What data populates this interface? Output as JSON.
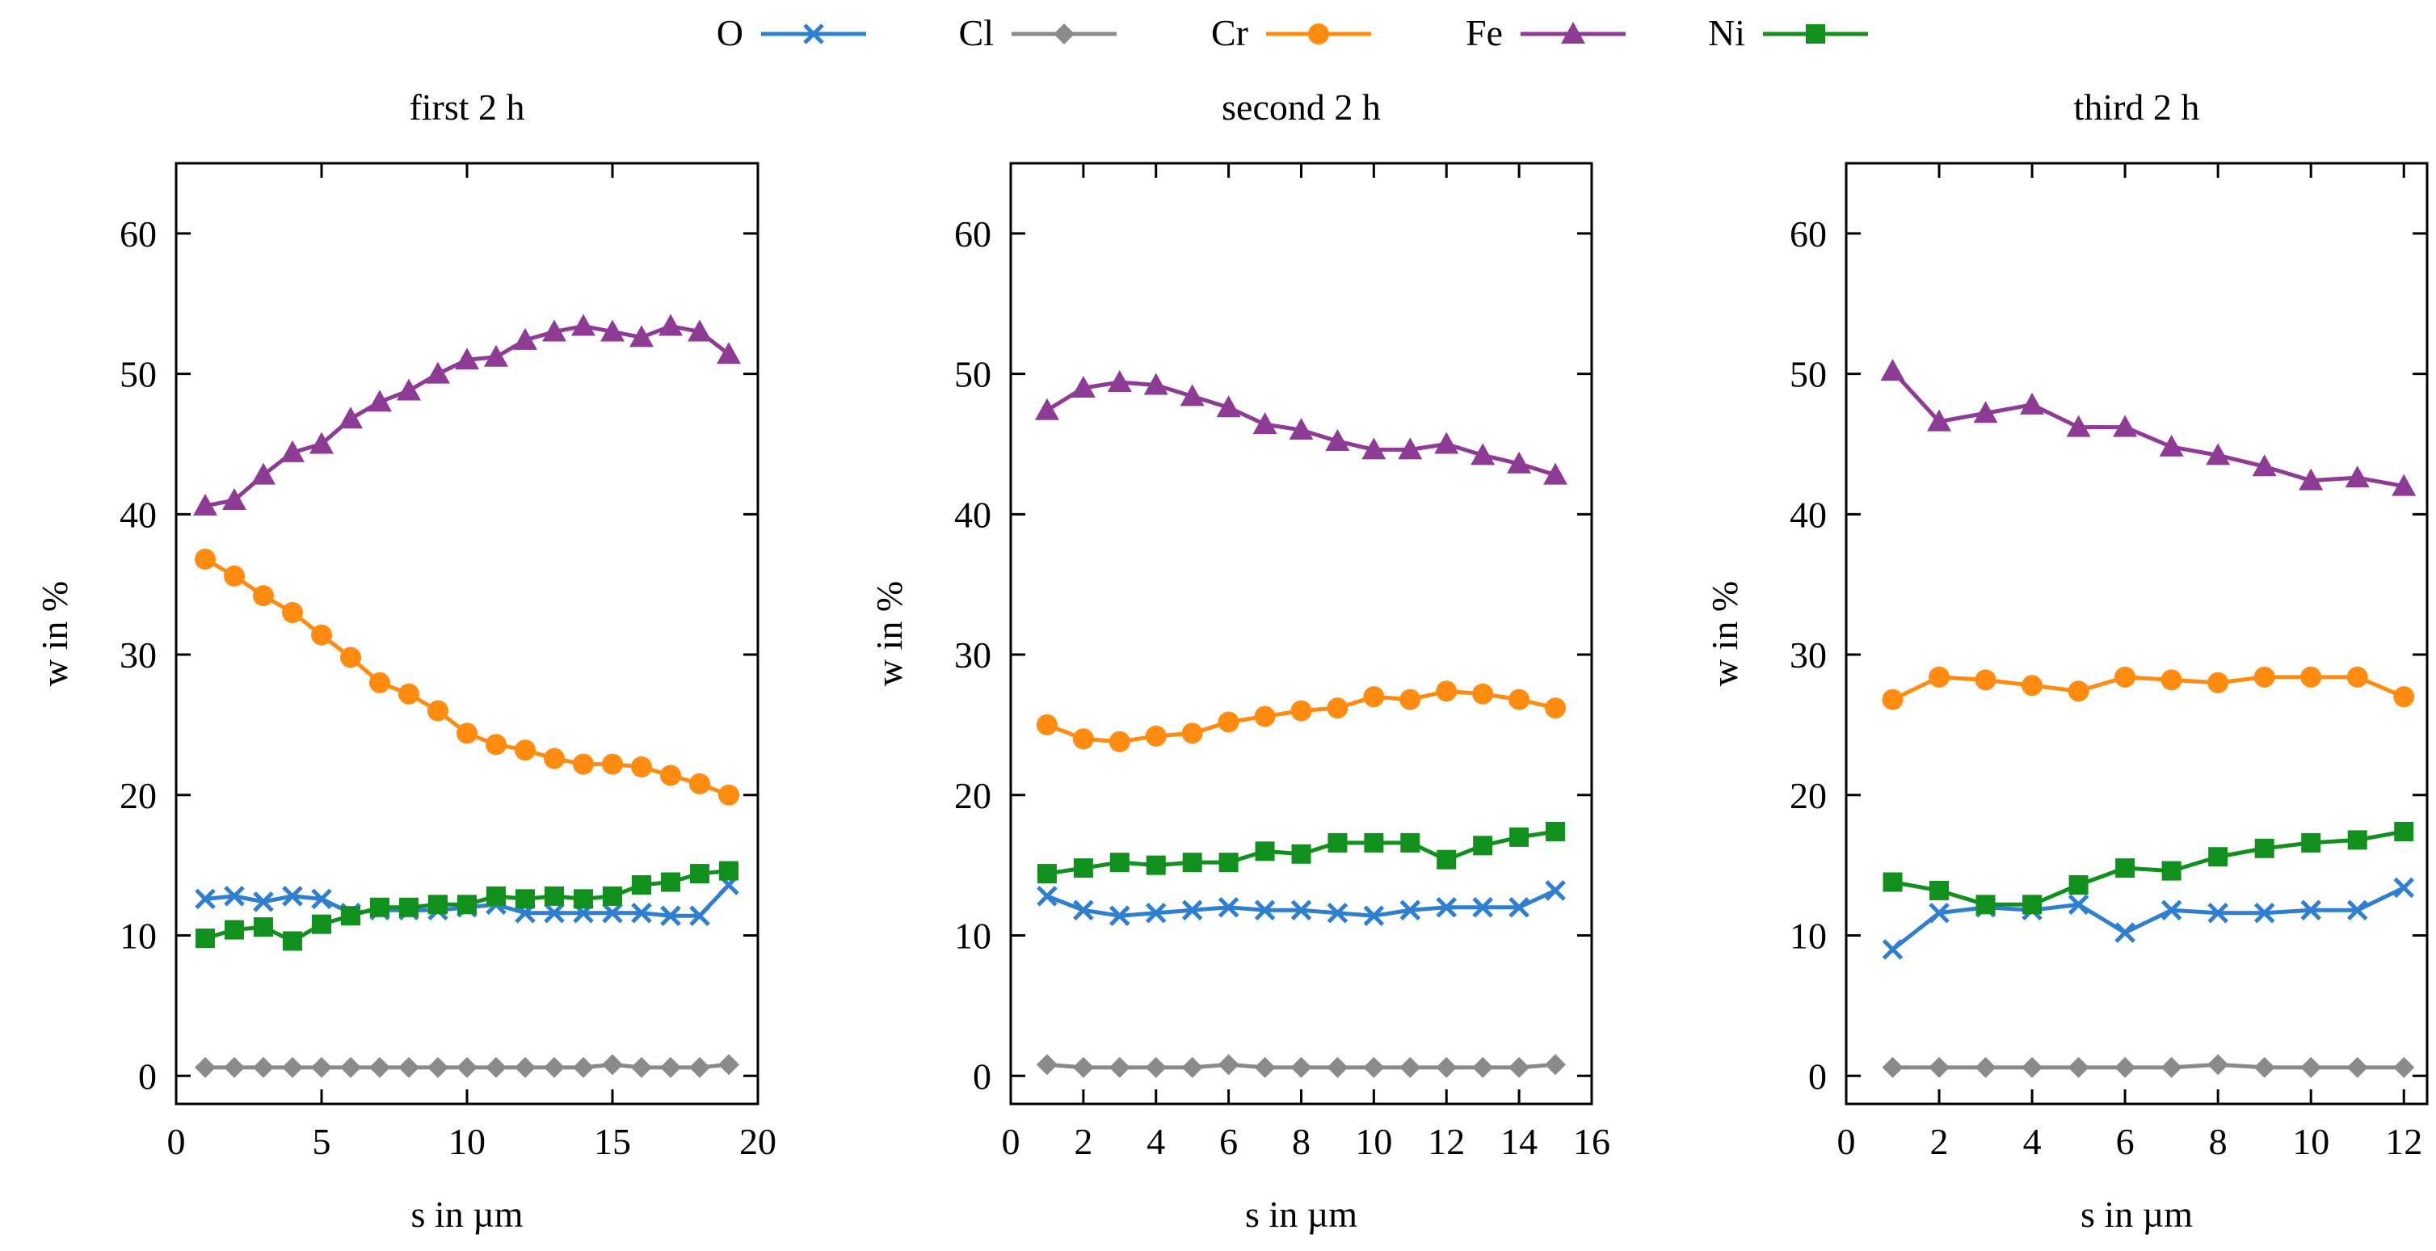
{
  "legend": [
    {
      "name": "O",
      "color": "#2f7fd0",
      "marker": "x"
    },
    {
      "name": "Cl",
      "color": "#8a8a8a",
      "marker": "diamond"
    },
    {
      "name": "Cr",
      "color": "#ff8c10",
      "marker": "circle"
    },
    {
      "name": "Fe",
      "color": "#8e3b96",
      "marker": "triangle"
    },
    {
      "name": "Ni",
      "color": "#12901e",
      "marker": "square"
    }
  ],
  "chart_data": [
    {
      "type": "line",
      "title": "first 2 h",
      "xlabel": "s in µm",
      "ylabel": "w in %",
      "xlim": [
        0,
        20
      ],
      "ylim": [
        -2,
        65
      ],
      "xticks": [
        0,
        5,
        10,
        15,
        20
      ],
      "yticks": [
        0,
        10,
        20,
        30,
        40,
        50,
        60
      ],
      "x": [
        1,
        2,
        3,
        4,
        5,
        6,
        7,
        8,
        9,
        10,
        11,
        12,
        13,
        14,
        15,
        16,
        17,
        18,
        19
      ],
      "series": [
        {
          "name": "O",
          "values": [
            12.6,
            12.8,
            12.4,
            12.8,
            12.6,
            11.6,
            11.8,
            11.8,
            11.8,
            12.0,
            12.2,
            11.6,
            11.6,
            11.6,
            11.6,
            11.6,
            11.4,
            11.4,
            13.6
          ]
        },
        {
          "name": "Cl",
          "values": [
            0.6,
            0.6,
            0.6,
            0.6,
            0.6,
            0.6,
            0.6,
            0.6,
            0.6,
            0.6,
            0.6,
            0.6,
            0.6,
            0.6,
            0.8,
            0.6,
            0.6,
            0.6,
            0.8
          ]
        },
        {
          "name": "Cr",
          "values": [
            36.8,
            35.6,
            34.2,
            33.0,
            31.4,
            29.8,
            28.0,
            27.2,
            26.0,
            24.4,
            23.6,
            23.2,
            22.6,
            22.2,
            22.2,
            22.0,
            21.4,
            20.8,
            20.0
          ]
        },
        {
          "name": "Fe",
          "values": [
            40.6,
            41.0,
            42.8,
            44.4,
            45.0,
            46.8,
            48.0,
            48.8,
            50.0,
            51.0,
            51.2,
            52.4,
            53.0,
            53.4,
            53.0,
            52.6,
            53.4,
            53.0,
            51.4
          ]
        },
        {
          "name": "Ni",
          "values": [
            9.8,
            10.4,
            10.6,
            9.6,
            10.8,
            11.4,
            12.0,
            12.0,
            12.2,
            12.2,
            12.8,
            12.6,
            12.8,
            12.6,
            12.8,
            13.6,
            13.8,
            14.4,
            14.6
          ]
        }
      ]
    },
    {
      "type": "line",
      "title": "second 2 h",
      "xlabel": "s in µm",
      "ylabel": "w in %",
      "xlim": [
        0,
        16
      ],
      "ylim": [
        -2,
        65
      ],
      "xticks": [
        0,
        2,
        4,
        6,
        8,
        10,
        12,
        14,
        16
      ],
      "yticks": [
        0,
        10,
        20,
        30,
        40,
        50,
        60
      ],
      "x": [
        1,
        2,
        3,
        4,
        5,
        6,
        7,
        8,
        9,
        10,
        11,
        12,
        13,
        14,
        15
      ],
      "series": [
        {
          "name": "O",
          "values": [
            12.8,
            11.8,
            11.4,
            11.6,
            11.8,
            12.0,
            11.8,
            11.8,
            11.6,
            11.4,
            11.8,
            12.0,
            12.0,
            12.0,
            13.2
          ]
        },
        {
          "name": "Cl",
          "values": [
            0.8,
            0.6,
            0.6,
            0.6,
            0.6,
            0.8,
            0.6,
            0.6,
            0.6,
            0.6,
            0.6,
            0.6,
            0.6,
            0.6,
            0.8
          ]
        },
        {
          "name": "Cr",
          "values": [
            25.0,
            24.0,
            23.8,
            24.2,
            24.4,
            25.2,
            25.6,
            26.0,
            26.2,
            27.0,
            26.8,
            27.4,
            27.2,
            26.8,
            26.2
          ]
        },
        {
          "name": "Fe",
          "values": [
            47.4,
            49.0,
            49.4,
            49.2,
            48.4,
            47.6,
            46.4,
            46.0,
            45.2,
            44.6,
            44.6,
            45.0,
            44.2,
            43.6,
            42.8
          ]
        },
        {
          "name": "Ni",
          "values": [
            14.4,
            14.8,
            15.2,
            15.0,
            15.2,
            15.2,
            16.0,
            15.8,
            16.6,
            16.6,
            16.6,
            15.4,
            16.4,
            17.0,
            17.4
          ]
        }
      ]
    },
    {
      "type": "line",
      "title": "third 2 h",
      "xlabel": "s in µm",
      "ylabel": "w in %",
      "xlim": [
        0,
        12.5
      ],
      "ylim": [
        -2,
        65
      ],
      "xticks": [
        0,
        2,
        4,
        6,
        8,
        10,
        12
      ],
      "yticks": [
        0,
        10,
        20,
        30,
        40,
        50,
        60
      ],
      "x": [
        1,
        2,
        3,
        4,
        5,
        6,
        7,
        8,
        9,
        10,
        11,
        12
      ],
      "series": [
        {
          "name": "O",
          "values": [
            9.0,
            11.6,
            12.0,
            11.8,
            12.2,
            10.2,
            11.8,
            11.6,
            11.6,
            11.8,
            11.8,
            13.4
          ]
        },
        {
          "name": "Cl",
          "values": [
            0.6,
            0.6,
            0.6,
            0.6,
            0.6,
            0.6,
            0.6,
            0.8,
            0.6,
            0.6,
            0.6,
            0.6
          ]
        },
        {
          "name": "Cr",
          "values": [
            26.8,
            28.4,
            28.2,
            27.8,
            27.4,
            28.4,
            28.2,
            28.0,
            28.4,
            28.4,
            28.4,
            27.0
          ]
        },
        {
          "name": "Fe",
          "values": [
            50.2,
            46.6,
            47.2,
            47.8,
            46.2,
            46.2,
            44.8,
            44.2,
            43.4,
            42.4,
            42.6,
            42.0
          ]
        },
        {
          "name": "Ni",
          "values": [
            13.8,
            13.2,
            12.2,
            12.2,
            13.6,
            14.8,
            14.6,
            15.6,
            16.2,
            16.6,
            16.8,
            17.4
          ]
        }
      ]
    }
  ]
}
